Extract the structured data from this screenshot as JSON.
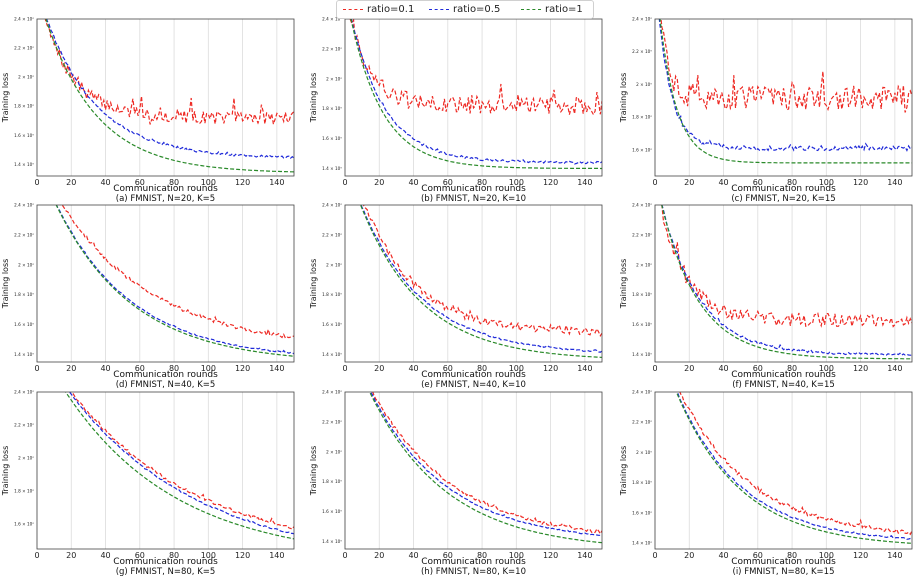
{
  "legend": {
    "entries": [
      {
        "label": "ratio=0.1",
        "color": "#ee2a24"
      },
      {
        "label": "ratio=0.5",
        "color": "#1f2ad9"
      },
      {
        "label": "ratio=1",
        "color": "#2a8a2a"
      }
    ]
  },
  "chart_data": [
    {
      "type": "line",
      "caption": "(a) FMNIST, N=20, K=5",
      "xlabel": "Communication rounds",
      "ylabel": "Training loss",
      "xlim": [
        0,
        150
      ],
      "xticks": [
        0,
        20,
        40,
        60,
        80,
        100,
        120,
        140
      ],
      "ylim": [
        1.32,
        2.4
      ],
      "ytick_values": [
        1.4,
        1.6,
        1.8,
        2.0,
        2.2,
        2.4
      ],
      "ytick_labels": [
        "1.4 × 10⁰",
        "1.6 × 10⁰",
        "1.8 × 10⁰",
        "2 × 10⁰",
        "2.2 × 10⁰",
        "2.4 × 10⁰"
      ],
      "series": [
        {
          "name": "ratio=0.1",
          "start": 2.6,
          "end": 1.72,
          "tau": 18,
          "noise": 0.045
        },
        {
          "name": "ratio=0.5",
          "start": 2.6,
          "end": 1.44,
          "tau": 30,
          "noise": 0.008
        },
        {
          "name": "ratio=1",
          "start": 2.6,
          "end": 1.34,
          "tau": 30,
          "noise": 0
        }
      ]
    },
    {
      "type": "line",
      "caption": "(b) FMNIST, N=20, K=10",
      "xlabel": "Communication rounds",
      "ylabel": "Training loss",
      "xlim": [
        0,
        150
      ],
      "xticks": [
        0,
        20,
        40,
        60,
        80,
        100,
        120,
        140
      ],
      "ylim": [
        1.35,
        2.4
      ],
      "ytick_values": [
        1.4,
        1.6,
        1.8,
        2.0,
        2.2,
        2.4
      ],
      "ytick_labels": [
        "1.4 × 10⁰",
        "1.6 × 10⁰",
        "1.8 × 10⁰",
        "2 × 10⁰",
        "2.2 × 10⁰",
        "2.4 × 10⁰"
      ],
      "series": [
        {
          "name": "ratio=0.1",
          "start": 2.6,
          "end": 1.82,
          "tau": 12,
          "noise": 0.06
        },
        {
          "name": "ratio=0.5",
          "start": 2.6,
          "end": 1.44,
          "tau": 20,
          "noise": 0.008
        },
        {
          "name": "ratio=1",
          "start": 2.6,
          "end": 1.4,
          "tau": 19,
          "noise": 0
        }
      ]
    },
    {
      "type": "line",
      "caption": "(c) FMNIST, N=20, K=15",
      "xlabel": "Communication rounds",
      "ylabel": "Training loss",
      "xlim": [
        0,
        150
      ],
      "xticks": [
        0,
        20,
        40,
        60,
        80,
        100,
        120,
        140
      ],
      "ylim": [
        1.44,
        2.4
      ],
      "ytick_values": [
        1.6,
        1.8,
        2.0,
        2.2,
        2.4
      ],
      "ytick_labels": [
        "1.6 × 10⁰",
        "1.8 × 10⁰",
        "2 × 10⁰",
        "2.2 × 10⁰",
        "2.4 × 10⁰"
      ],
      "series": [
        {
          "name": "ratio=0.1",
          "start": 2.8,
          "end": 1.92,
          "tau": 5,
          "noise": 0.075
        },
        {
          "name": "ratio=0.5",
          "start": 2.7,
          "end": 1.61,
          "tau": 8,
          "noise": 0.014
        },
        {
          "name": "ratio=1",
          "start": 2.7,
          "end": 1.52,
          "tau": 10,
          "noise": 0
        }
      ]
    },
    {
      "type": "line",
      "caption": "(d) FMNIST, N=40, K=5",
      "xlabel": "Communication rounds",
      "ylabel": "Training loss",
      "xlim": [
        0,
        150
      ],
      "xticks": [
        0,
        20,
        40,
        60,
        80,
        100,
        120,
        140
      ],
      "ylim": [
        1.35,
        2.4
      ],
      "ytick_values": [
        1.4,
        1.6,
        1.8,
        2.0,
        2.2,
        2.4
      ],
      "ytick_labels": [
        "1.4 × 10⁰",
        "1.6 × 10⁰",
        "1.8 × 10⁰",
        "2 × 10⁰",
        "2.2 × 10⁰",
        "2.4 × 10⁰"
      ],
      "series": [
        {
          "name": "ratio=0.1",
          "start": 2.7,
          "end": 1.43,
          "tau": 55,
          "noise": 0.012
        },
        {
          "name": "ratio=0.5",
          "start": 2.7,
          "end": 1.36,
          "tau": 45,
          "noise": 0.004
        },
        {
          "name": "ratio=1",
          "start": 2.7,
          "end": 1.34,
          "tau": 45,
          "noise": 0
        }
      ]
    },
    {
      "type": "line",
      "caption": "(e) FMNIST, N=40, K=10",
      "xlabel": "Communication rounds",
      "ylabel": "Training loss",
      "xlim": [
        0,
        150
      ],
      "xticks": [
        0,
        20,
        40,
        60,
        80,
        100,
        120,
        140
      ],
      "ylim": [
        1.35,
        2.4
      ],
      "ytick_values": [
        1.4,
        1.6,
        1.8,
        2.0,
        2.2,
        2.4
      ],
      "ytick_labels": [
        "1.4 × 10⁰",
        "1.6 × 10⁰",
        "1.8 × 10⁰",
        "2 × 10⁰",
        "2.2 × 10⁰",
        "2.4 × 10⁰"
      ],
      "series": [
        {
          "name": "ratio=0.1",
          "start": 2.8,
          "end": 1.54,
          "tau": 30,
          "noise": 0.025
        },
        {
          "name": "ratio=0.5",
          "start": 2.7,
          "end": 1.4,
          "tau": 36,
          "noise": 0.005
        },
        {
          "name": "ratio=1",
          "start": 2.7,
          "end": 1.36,
          "tau": 36,
          "noise": 0
        }
      ]
    },
    {
      "type": "line",
      "caption": "(f) FMNIST, N=40, K=15",
      "xlabel": "Communication rounds",
      "ylabel": "Training loss",
      "xlim": [
        0,
        150
      ],
      "xticks": [
        0,
        20,
        40,
        60,
        80,
        100,
        120,
        140
      ],
      "ylim": [
        1.35,
        2.4
      ],
      "ytick_values": [
        1.4,
        1.6,
        1.8,
        2.0,
        2.2,
        2.4
      ],
      "ytick_labels": [
        "1.4 × 10⁰",
        "1.6 × 10⁰",
        "1.8 × 10⁰",
        "2 × 10⁰",
        "2.2 × 10⁰",
        "2.4 × 10⁰"
      ],
      "series": [
        {
          "name": "ratio=0.1",
          "start": 2.6,
          "end": 1.63,
          "tau": 15,
          "noise": 0.045
        },
        {
          "name": "ratio=0.5",
          "start": 2.6,
          "end": 1.4,
          "tau": 22,
          "noise": 0.008
        },
        {
          "name": "ratio=1",
          "start": 2.6,
          "end": 1.37,
          "tau": 22,
          "noise": 0
        }
      ]
    },
    {
      "type": "line",
      "caption": "(g) FMNIST, N=80, K=5",
      "xlabel": "Communication rounds",
      "ylabel": "Training loss",
      "xlim": [
        0,
        150
      ],
      "xticks": [
        0,
        20,
        40,
        60,
        80,
        100,
        120,
        140
      ],
      "ylim": [
        1.45,
        2.4
      ],
      "ytick_values": [
        1.6,
        1.8,
        2.0,
        2.2,
        2.4
      ],
      "ytick_labels": [
        "1.6 × 10⁰",
        "1.8 × 10⁰",
        "2 × 10⁰",
        "2.2 × 10⁰",
        "2.4 × 10⁰"
      ],
      "series": [
        {
          "name": "ratio=0.1",
          "start": 2.7,
          "end": 1.4,
          "tau": 75,
          "noise": 0.01
        },
        {
          "name": "ratio=0.5",
          "start": 2.7,
          "end": 1.36,
          "tau": 75,
          "noise": 0.004
        },
        {
          "name": "ratio=1",
          "start": 2.7,
          "end": 1.38,
          "tau": 65,
          "noise": 0
        }
      ]
    },
    {
      "type": "line",
      "caption": "(h) FMNIST, N=80, K=10",
      "xlabel": "Communication rounds",
      "ylabel": "Training loss",
      "xlim": [
        0,
        150
      ],
      "xticks": [
        0,
        20,
        40,
        60,
        80,
        100,
        120,
        140
      ],
      "ylim": [
        1.35,
        2.4
      ],
      "ytick_values": [
        1.4,
        1.6,
        1.8,
        2.0,
        2.2,
        2.4
      ],
      "ytick_labels": [
        "1.4 × 10⁰",
        "1.6 × 10⁰",
        "1.8 × 10⁰",
        "2 × 10⁰",
        "2.2 × 10⁰",
        "2.4 × 10⁰"
      ],
      "series": [
        {
          "name": "ratio=0.1",
          "start": 2.8,
          "end": 1.4,
          "tau": 48,
          "noise": 0.012
        },
        {
          "name": "ratio=0.5",
          "start": 2.8,
          "end": 1.39,
          "tau": 45,
          "noise": 0.004
        },
        {
          "name": "ratio=1",
          "start": 2.8,
          "end": 1.34,
          "tau": 45,
          "noise": 0
        }
      ]
    },
    {
      "type": "line",
      "caption": "(i) FMNIST, N=80, K=15",
      "xlabel": "Communication rounds",
      "ylabel": "Training loss",
      "xlim": [
        0,
        150
      ],
      "xticks": [
        0,
        20,
        40,
        60,
        80,
        100,
        120,
        140
      ],
      "ylim": [
        1.36,
        2.4
      ],
      "ytick_values": [
        1.4,
        1.6,
        1.8,
        2.0,
        2.2,
        2.4
      ],
      "ytick_labels": [
        "1.4 × 10⁰",
        "1.6 × 10⁰",
        "1.8 × 10⁰",
        "2 × 10⁰",
        "2.2 × 10⁰",
        "2.4 × 10⁰"
      ],
      "series": [
        {
          "name": "ratio=0.1",
          "start": 2.8,
          "end": 1.43,
          "tau": 42,
          "noise": 0.015
        },
        {
          "name": "ratio=0.5",
          "start": 2.8,
          "end": 1.4,
          "tau": 38,
          "noise": 0.005
        },
        {
          "name": "ratio=1",
          "start": 2.8,
          "end": 1.37,
          "tau": 38,
          "noise": 0
        }
      ]
    }
  ]
}
